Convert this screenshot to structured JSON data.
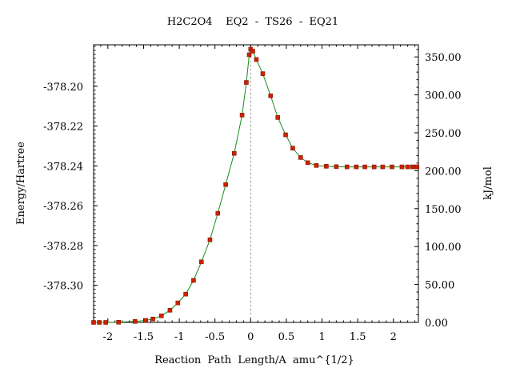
{
  "chart_data": {
    "type": "line",
    "title": "H2C2O4    EQ2  -  TS26  -  EQ21",
    "xlabel": "Reaction  Path  Length/A  amu^{1/2}",
    "ylabel_left": "Energy/Hartree",
    "ylabel_right": "kJ/mol",
    "xlim": [
      -2.2,
      2.35
    ],
    "ylim_left": [
      -378.3186,
      -378.1792
    ],
    "ylim_right": [
      0,
      366
    ],
    "x_ticks": [
      -2,
      -1.5,
      -1,
      -0.5,
      0,
      0.5,
      1,
      1.5,
      2
    ],
    "x_tick_labels": [
      "-2",
      "-1.5",
      "-1",
      "-0.5",
      "0",
      "0.5",
      "1",
      "1.5",
      "2"
    ],
    "y_left_ticks": [
      -378.2,
      -378.22,
      -378.24,
      -378.26,
      -378.28,
      -378.3
    ],
    "y_left_tick_labels": [
      "-378.20",
      "-378.22",
      "-378.24",
      "-378.26",
      "-378.28",
      "-378.30"
    ],
    "y_right_ticks": [
      0,
      50,
      100,
      150,
      200,
      250,
      300,
      350
    ],
    "y_right_tick_labels": [
      "0.00",
      "50.00",
      "100.00",
      "150.00",
      "200.00",
      "250.00",
      "300.00",
      "350.00"
    ],
    "ts_marker_x": 0,
    "line_color": "#1a8c1a",
    "point_color": "#cc2200",
    "series": [
      {
        "values": [
          [
            -2.2,
            -378.3186
          ],
          [
            -2.12,
            -378.3186
          ],
          [
            -2.03,
            -378.3186
          ],
          [
            -1.85,
            -378.3185
          ],
          [
            -1.62,
            -378.3181
          ],
          [
            -1.47,
            -378.3176
          ],
          [
            -1.37,
            -378.3169
          ],
          [
            -1.25,
            -378.3153
          ],
          [
            -1.13,
            -378.3125
          ],
          [
            -1.02,
            -378.3088
          ],
          [
            -0.91,
            -378.3044
          ],
          [
            -0.8,
            -378.2975
          ],
          [
            -0.69,
            -378.2882
          ],
          [
            -0.57,
            -378.2771
          ],
          [
            -0.46,
            -378.2638
          ],
          [
            -0.35,
            -378.2494
          ],
          [
            -0.23,
            -378.2337
          ],
          [
            -0.12,
            -378.2145
          ],
          [
            -0.06,
            -378.1981
          ],
          [
            -0.02,
            -378.1842
          ],
          [
            0,
            -378.1814
          ],
          [
            0.03,
            -378.1824
          ],
          [
            0.08,
            -378.1866
          ],
          [
            0.17,
            -378.1937
          ],
          [
            0.28,
            -378.2048
          ],
          [
            0.38,
            -378.2157
          ],
          [
            0.49,
            -378.2244
          ],
          [
            0.59,
            -378.2311
          ],
          [
            0.7,
            -378.2358
          ],
          [
            0.8,
            -378.2384
          ],
          [
            0.92,
            -378.2398
          ],
          [
            1.06,
            -378.2402
          ],
          [
            1.2,
            -378.2404
          ],
          [
            1.35,
            -378.2405
          ],
          [
            1.48,
            -378.2405
          ],
          [
            1.6,
            -378.2405
          ],
          [
            1.73,
            -378.2405
          ],
          [
            1.85,
            -378.2405
          ],
          [
            1.98,
            -378.2405
          ],
          [
            2.12,
            -378.2405
          ],
          [
            2.2,
            -378.2405
          ],
          [
            2.27,
            -378.2405
          ],
          [
            2.33,
            -378.2405
          ]
        ]
      }
    ]
  }
}
